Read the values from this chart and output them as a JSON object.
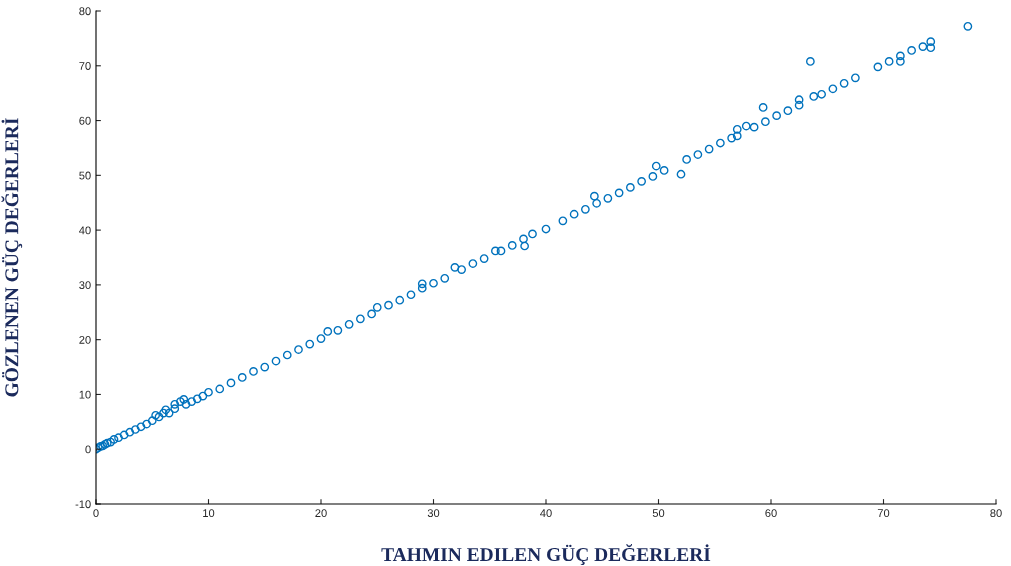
{
  "chart_data": {
    "type": "scatter",
    "xlabel": "TAHMIN EDILEN GÜÇ DEĞERLERİ",
    "ylabel": "GÖZLENEN GÜÇ DEĞERLERİ",
    "x": [
      0,
      0.2,
      0.4,
      0.6,
      0.8,
      1,
      1.3,
      1.6,
      2,
      2.5,
      3,
      3.5,
      4,
      4.5,
      5,
      5.3,
      5.6,
      6,
      6.2,
      6.5,
      7,
      7,
      7.5,
      7.8,
      8,
      8.5,
      9,
      9.5,
      10,
      11,
      12,
      13,
      14,
      15,
      16,
      17,
      18,
      19,
      20,
      20.6,
      21.5,
      22.5,
      23.5,
      24.5,
      25,
      26,
      27,
      28,
      29,
      29,
      30,
      31,
      31.9,
      32.5,
      33.5,
      34.5,
      35.5,
      36,
      37,
      38,
      38.1,
      38.8,
      40,
      41.5,
      42.5,
      43.5,
      44.3,
      44.5,
      45.5,
      46.5,
      47.5,
      48.5,
      49.5,
      49.8,
      50.5,
      52,
      52.5,
      53.5,
      54.5,
      55.5,
      56.5,
      57,
      57,
      57.8,
      58.5,
      59.3,
      59.5,
      60.5,
      61.5,
      62.5,
      62.5,
      63.5,
      63.8,
      64.5,
      65.5,
      66.5,
      67.5,
      69.5,
      70.5,
      71.5,
      71.5,
      72.5,
      73.5,
      74.2,
      74.2,
      77.5
    ],
    "values": [
      0,
      0.3,
      0.5,
      0.6,
      0.9,
      1.1,
      1.3,
      1.8,
      2.1,
      2.6,
      3.1,
      3.6,
      4.1,
      4.6,
      5.2,
      6.2,
      5.9,
      6.6,
      7.2,
      6.6,
      7.4,
      8.2,
      8.7,
      9.1,
      8.2,
      8.7,
      9.2,
      9.7,
      10.4,
      11,
      12.1,
      13.1,
      14.2,
      15,
      16.1,
      17.2,
      18.2,
      19.2,
      20.2,
      21.5,
      21.7,
      22.8,
      23.8,
      24.7,
      25.9,
      26.3,
      27.2,
      28.2,
      29.4,
      30.2,
      30.3,
      31.2,
      33.2,
      32.8,
      33.9,
      34.8,
      36.2,
      36.2,
      37.2,
      38.4,
      37.1,
      39.3,
      40.2,
      41.7,
      42.9,
      43.8,
      46.2,
      44.9,
      45.8,
      46.8,
      47.8,
      48.9,
      49.8,
      51.7,
      50.9,
      50.2,
      52.9,
      53.8,
      54.8,
      55.9,
      56.8,
      57.2,
      58.4,
      59,
      58.8,
      62.4,
      59.8,
      60.9,
      61.8,
      62.8,
      63.8,
      70.8,
      64.4,
      64.8,
      65.8,
      66.8,
      67.8,
      69.8,
      70.8,
      71.8,
      70.8,
      72.8,
      73.5,
      74.4,
      73.3,
      77.2
    ],
    "color": "#0072bd",
    "marker": "circle",
    "xlim": [
      0,
      80
    ],
    "xticks": [
      0,
      10,
      20,
      30,
      40,
      50,
      60,
      70,
      80
    ],
    "ylim": [
      -10,
      80
    ],
    "yticks": [
      -10,
      0,
      10,
      20,
      30,
      40,
      50,
      60,
      70,
      80
    ],
    "grid": false
  }
}
